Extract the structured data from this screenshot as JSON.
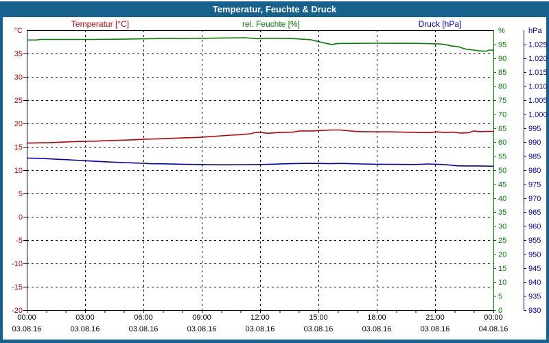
{
  "title": "Temperatur, Feuchte & Druck",
  "colors": {
    "frame": "#17618f",
    "title_text": "#ffffff",
    "plot_background": "#ffffff",
    "grid": "#000000",
    "temperature": "#c00000",
    "humidity": "#008000",
    "pressure": "#0000bb"
  },
  "series_labels": {
    "temperature": "Temperatur [°C]",
    "humidity": "rel. Feuchte [%]",
    "pressure": "Druck [hPa]"
  },
  "chart_data": {
    "type": "line",
    "title": "Temperatur, Feuchte & Druck",
    "x_unit": "hours",
    "x_range": [
      0,
      24
    ],
    "minor_tick_every_hours": 1,
    "x_ticks": [
      {
        "hour": 0,
        "time": "00:00",
        "date": "03.08.16"
      },
      {
        "hour": 3,
        "time": "03:00",
        "date": "03.08.16"
      },
      {
        "hour": 6,
        "time": "06:00",
        "date": "03.08.16"
      },
      {
        "hour": 9,
        "time": "09:00",
        "date": "03.08.16"
      },
      {
        "hour": 12,
        "time": "12:00",
        "date": "03.08.16"
      },
      {
        "hour": 15,
        "time": "15:00",
        "date": "03.08.16"
      },
      {
        "hour": 18,
        "time": "18:00",
        "date": "03.08.16"
      },
      {
        "hour": 21,
        "time": "21:00",
        "date": "03.08.16"
      },
      {
        "hour": 24,
        "time": "00:00",
        "date": "04.08.16"
      }
    ],
    "grid": {
      "horizontal_at_celsius": [
        35,
        30,
        25,
        20,
        15,
        10,
        5,
        0,
        -5,
        -10,
        -15
      ],
      "vertical_at_hours": [
        3,
        6,
        9,
        12,
        15,
        18,
        21
      ]
    },
    "axes": {
      "temperature": {
        "unit": "°C",
        "min": -20,
        "max": 40,
        "tick_step": 5,
        "color": "#c00000",
        "side": "left",
        "thousands_dot": false
      },
      "humidity": {
        "unit": "%",
        "min": 0,
        "max": 100,
        "tick_step": 5,
        "color": "#008000",
        "side": "right",
        "thousands_dot": false
      },
      "pressure": {
        "unit": "hPa",
        "min": 930,
        "max": 1030,
        "tick_step": 5,
        "color": "#0000bb",
        "side": "far-right",
        "thousands_dot": true
      }
    },
    "series": [
      {
        "name": "Temperatur [°C]",
        "axis": "temperature",
        "color": "#c00000",
        "points": [
          [
            0,
            15.8
          ],
          [
            0.7,
            15.85
          ],
          [
            1.2,
            15.9
          ],
          [
            2,
            16.05
          ],
          [
            2.7,
            16.15
          ],
          [
            3.5,
            16.2
          ],
          [
            4,
            16.3
          ],
          [
            4.7,
            16.4
          ],
          [
            5.5,
            16.5
          ],
          [
            6,
            16.6
          ],
          [
            6.7,
            16.7
          ],
          [
            7.3,
            16.8
          ],
          [
            8,
            16.9
          ],
          [
            8.7,
            17.0
          ],
          [
            9.3,
            17.15
          ],
          [
            10,
            17.35
          ],
          [
            10.5,
            17.5
          ],
          [
            11,
            17.6
          ],
          [
            11.5,
            17.8
          ],
          [
            11.8,
            18.1
          ],
          [
            12.1,
            18.05
          ],
          [
            12.4,
            17.9
          ],
          [
            12.9,
            18.05
          ],
          [
            13.2,
            18.1
          ],
          [
            13.7,
            18.15
          ],
          [
            14,
            18.4
          ],
          [
            14.7,
            18.4
          ],
          [
            15.2,
            18.5
          ],
          [
            15.7,
            18.6
          ],
          [
            16.1,
            18.6
          ],
          [
            16.5,
            18.45
          ],
          [
            16.9,
            18.3
          ],
          [
            17.3,
            18.25
          ],
          [
            18,
            18.2
          ],
          [
            18.7,
            18.2
          ],
          [
            19.3,
            18.15
          ],
          [
            20,
            18.1
          ],
          [
            20.7,
            18.05
          ],
          [
            21.1,
            18.2
          ],
          [
            21.5,
            18.05
          ],
          [
            21.9,
            18.15
          ],
          [
            22.3,
            17.95
          ],
          [
            22.7,
            18.0
          ],
          [
            23,
            18.4
          ],
          [
            23.3,
            18.25
          ],
          [
            23.6,
            18.3
          ],
          [
            24,
            18.3
          ]
        ]
      },
      {
        "name": "rel. Feuchte [%]",
        "axis": "humidity",
        "color": "#008000",
        "points": [
          [
            0,
            96.5
          ],
          [
            0.5,
            96.5
          ],
          [
            0.7,
            96.7
          ],
          [
            2,
            96.7
          ],
          [
            3.5,
            96.7
          ],
          [
            5,
            96.8
          ],
          [
            6,
            96.9
          ],
          [
            7,
            97.0
          ],
          [
            7.4,
            97.1
          ],
          [
            7.9,
            96.95
          ],
          [
            8.4,
            97.05
          ],
          [
            9,
            97.1
          ],
          [
            10,
            97.2
          ],
          [
            10.8,
            97.25
          ],
          [
            11.2,
            97.3
          ],
          [
            11.6,
            97.1
          ],
          [
            11.9,
            96.95
          ],
          [
            12.2,
            97.1
          ],
          [
            13,
            97.1
          ],
          [
            13.6,
            97.0
          ],
          [
            14.1,
            96.85
          ],
          [
            14.6,
            96.6
          ],
          [
            15,
            95.9
          ],
          [
            15.4,
            95.3
          ],
          [
            15.7,
            94.9
          ],
          [
            16,
            95.25
          ],
          [
            17,
            95.3
          ],
          [
            18,
            95.35
          ],
          [
            19,
            95.3
          ],
          [
            20,
            95.3
          ],
          [
            20.6,
            95.2
          ],
          [
            21.2,
            95.1
          ],
          [
            21.5,
            94.9
          ],
          [
            21.8,
            94.4
          ],
          [
            22.2,
            94.1
          ],
          [
            22.4,
            93.6
          ],
          [
            22.6,
            93.2
          ],
          [
            23,
            92.9
          ],
          [
            23.3,
            92.6
          ],
          [
            23.6,
            92.5
          ],
          [
            23.8,
            92.9
          ],
          [
            24,
            92.9
          ]
        ]
      },
      {
        "name": "Druck [hPa]",
        "axis": "pressure",
        "color": "#0000bb",
        "points": [
          [
            0,
            984.3
          ],
          [
            0.5,
            984.25
          ],
          [
            1,
            984.1
          ],
          [
            1.5,
            983.9
          ],
          [
            2,
            983.75
          ],
          [
            2.5,
            983.55
          ],
          [
            3,
            983.35
          ],
          [
            3.5,
            983.15
          ],
          [
            4,
            983.0
          ],
          [
            4.5,
            982.85
          ],
          [
            5,
            982.7
          ],
          [
            5.5,
            982.55
          ],
          [
            6,
            982.45
          ],
          [
            6.3,
            982.3
          ],
          [
            7,
            982.25
          ],
          [
            7.6,
            982.15
          ],
          [
            8.2,
            982.05
          ],
          [
            9,
            982.0
          ],
          [
            9.6,
            981.9
          ],
          [
            10.5,
            981.9
          ],
          [
            11.2,
            981.95
          ],
          [
            12,
            982.0
          ],
          [
            12.6,
            982.1
          ],
          [
            13.2,
            982.25
          ],
          [
            13.8,
            982.35
          ],
          [
            14.3,
            982.4
          ],
          [
            15,
            982.4
          ],
          [
            15.6,
            982.3
          ],
          [
            16.2,
            982.4
          ],
          [
            16.6,
            982.3
          ],
          [
            17.2,
            982.2
          ],
          [
            18,
            982.1
          ],
          [
            19,
            982.05
          ],
          [
            20,
            982.0
          ],
          [
            20.6,
            982.2
          ],
          [
            21,
            982.1
          ],
          [
            21.4,
            982.0
          ],
          [
            21.8,
            981.8
          ],
          [
            22.1,
            981.55
          ],
          [
            22.6,
            981.5
          ],
          [
            23.2,
            981.5
          ],
          [
            23.6,
            981.45
          ],
          [
            24,
            981.4
          ]
        ]
      }
    ]
  }
}
